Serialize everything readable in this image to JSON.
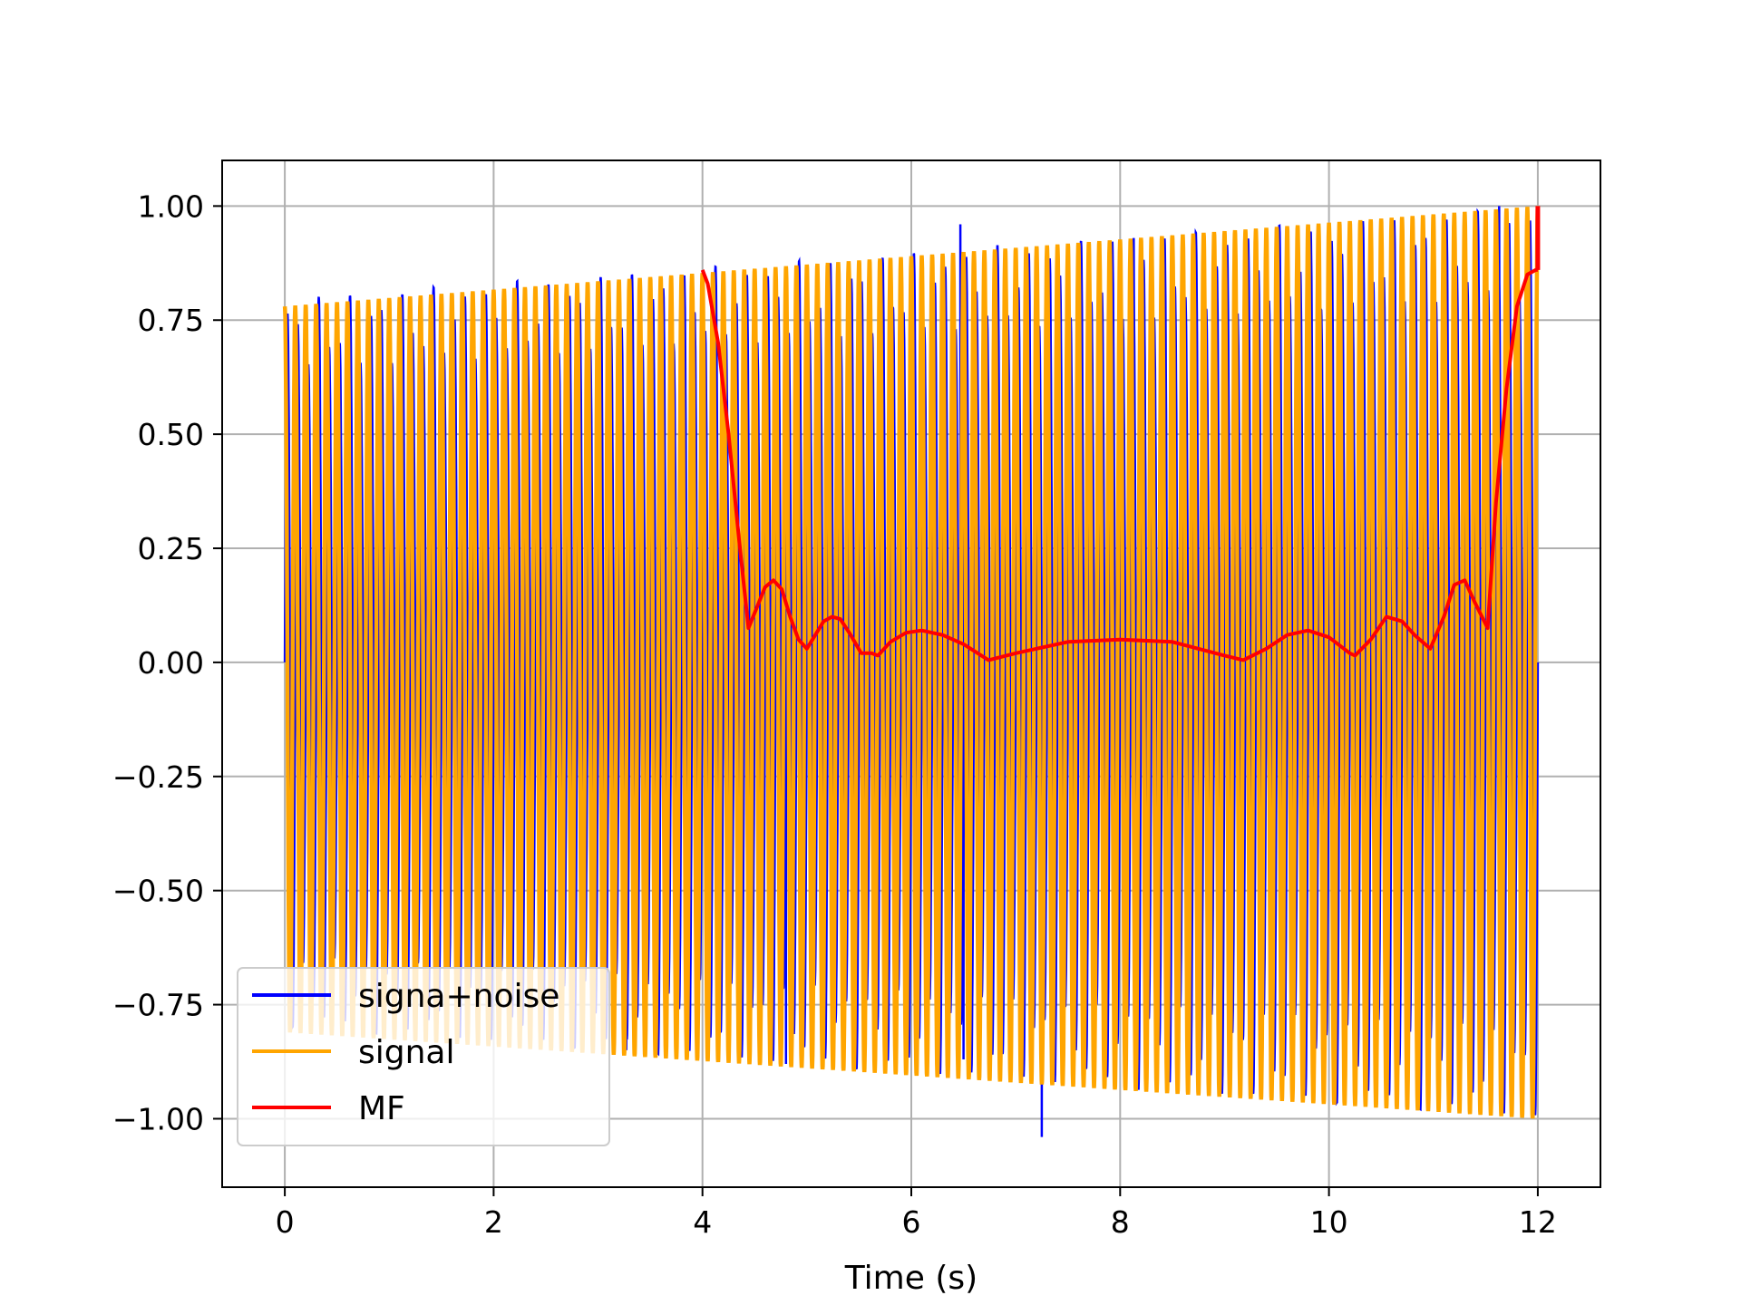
{
  "chart_data": {
    "type": "line",
    "title": "",
    "xlabel": "Time (s)",
    "ylabel": "",
    "xlim": [
      -0.6,
      12.6
    ],
    "ylim": [
      -1.15,
      1.1
    ],
    "xticks": [
      0,
      2,
      4,
      6,
      8,
      10,
      12
    ],
    "xtick_labels": [
      "0",
      "2",
      "4",
      "6",
      "8",
      "10",
      "12"
    ],
    "yticks": [
      1.0,
      0.75,
      0.5,
      0.25,
      0.0,
      -0.25,
      -0.5,
      -0.75,
      -1.0
    ],
    "ytick_labels": [
      "1.00",
      "0.75",
      "0.50",
      "0.25",
      "0.00",
      "−0.25",
      "−0.50",
      "−0.75",
      "−1.00"
    ],
    "grid": true,
    "legend_position": "lower-left",
    "series": [
      {
        "name": "signa+noise",
        "color": "#0000ff",
        "description_values": {
          "x_start": 0,
          "x_end": 12,
          "cycles": 120,
          "amp_start": 0.8,
          "amp_end": 1.0,
          "spikes": [
            {
              "x": 3.27,
              "y": -0.85
            },
            {
              "x": 4.8,
              "y": -0.88
            },
            {
              "x": 6.47,
              "y": 0.96
            },
            {
              "x": 6.5,
              "y": -0.87
            },
            {
              "x": 7.25,
              "y": -1.04
            },
            {
              "x": 8.13,
              "y": 0.93
            },
            {
              "x": 11.63,
              "y": 1.0
            }
          ]
        }
      },
      {
        "name": "signal",
        "color": "#ffa500",
        "description_values": {
          "x_start": 0,
          "x_end": 12,
          "cycles": 120,
          "upper_start": 0.78,
          "upper_end": 1.0,
          "lower_start": -0.81,
          "lower_end": -1.0
        }
      },
      {
        "name": "MF",
        "color": "#ff0000",
        "x": [
          4.0,
          4.05,
          4.15,
          4.25,
          4.35,
          4.44,
          4.52,
          4.6,
          4.68,
          4.76,
          4.84,
          4.92,
          5.0,
          5.08,
          5.16,
          5.24,
          5.32,
          5.42,
          5.52,
          5.62,
          5.68,
          5.8,
          5.95,
          6.1,
          6.3,
          6.5,
          6.74,
          7.0,
          7.5,
          8.0,
          8.5,
          9.0,
          9.18,
          9.4,
          9.6,
          9.8,
          10.0,
          10.2,
          10.25,
          10.4,
          10.55,
          10.7,
          10.82,
          10.97,
          11.1,
          11.2,
          11.3,
          11.4,
          11.52,
          11.6,
          11.7,
          11.8,
          11.9,
          11.98,
          12.0
        ],
        "y": [
          0.86,
          0.83,
          0.7,
          0.5,
          0.27,
          0.075,
          0.12,
          0.165,
          0.18,
          0.16,
          0.1,
          0.05,
          0.03,
          0.06,
          0.09,
          0.1,
          0.095,
          0.06,
          0.02,
          0.02,
          0.015,
          0.045,
          0.065,
          0.07,
          0.06,
          0.04,
          0.005,
          0.02,
          0.045,
          0.05,
          0.045,
          0.015,
          0.005,
          0.03,
          0.06,
          0.07,
          0.055,
          0.02,
          0.015,
          0.05,
          0.1,
          0.09,
          0.06,
          0.03,
          0.1,
          0.17,
          0.18,
          0.13,
          0.075,
          0.35,
          0.6,
          0.78,
          0.85,
          0.86,
          0.86
        ]
      }
    ]
  }
}
